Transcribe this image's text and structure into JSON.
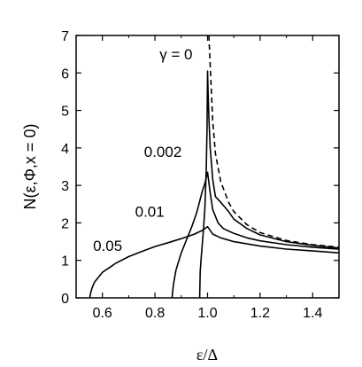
{
  "chart_data": {
    "type": "line",
    "title": "",
    "xlabel": "ε/Δ",
    "ylabel": "N(ε,Φ,x = 0)",
    "xlim": [
      0.5,
      1.5
    ],
    "ylim": [
      0,
      7
    ],
    "xticks": [
      0.6,
      0.8,
      1.0,
      1.2,
      1.4
    ],
    "xtick_labels": [
      "0.6",
      "0.8",
      "1.0",
      "1.2",
      "1.4"
    ],
    "yticks": [
      0,
      1,
      2,
      3,
      4,
      5,
      6,
      7
    ],
    "ytick_labels": [
      "0",
      "1",
      "2",
      "3",
      "4",
      "5",
      "6",
      "7"
    ],
    "grid": false,
    "series": [
      {
        "name": "γ = 0",
        "style": "dashed",
        "x": [
          1.005,
          1.01,
          1.02,
          1.03,
          1.05,
          1.08,
          1.1,
          1.15,
          1.2,
          1.3,
          1.4,
          1.5
        ],
        "y": [
          7.0,
          6.2,
          4.7,
          3.85,
          3.1,
          2.55,
          2.3,
          1.95,
          1.74,
          1.53,
          1.42,
          1.35
        ]
      },
      {
        "name": "0.002",
        "style": "solid",
        "x": [
          0.97,
          0.972,
          0.975,
          0.98,
          0.985,
          0.99,
          0.995,
          0.998,
          1.0,
          1.002,
          1.005,
          1.01,
          1.02,
          1.03,
          1.05,
          1.08,
          1.1,
          1.15,
          1.2,
          1.3,
          1.4,
          1.5
        ],
        "y": [
          0.0,
          0.7,
          1.0,
          1.45,
          1.85,
          2.4,
          3.4,
          4.5,
          6.05,
          5.5,
          4.8,
          4.0,
          3.15,
          2.7,
          2.55,
          2.3,
          2.1,
          1.85,
          1.68,
          1.5,
          1.4,
          1.33
        ]
      },
      {
        "name": "0.01",
        "style": "solid",
        "x": [
          0.865,
          0.87,
          0.88,
          0.9,
          0.92,
          0.94,
          0.96,
          0.98,
          0.99,
          1.0,
          1.01,
          1.02,
          1.04,
          1.06,
          1.1,
          1.15,
          1.2,
          1.3,
          1.4,
          1.5
        ],
        "y": [
          0.0,
          0.35,
          0.75,
          1.2,
          1.55,
          1.9,
          2.3,
          2.85,
          3.05,
          3.35,
          2.8,
          2.35,
          2.0,
          1.85,
          1.72,
          1.6,
          1.52,
          1.42,
          1.35,
          1.3
        ]
      },
      {
        "name": "0.05",
        "style": "solid",
        "x": [
          0.552,
          0.555,
          0.56,
          0.57,
          0.6,
          0.65,
          0.7,
          0.75,
          0.8,
          0.85,
          0.9,
          0.95,
          0.98,
          1.0,
          1.02,
          1.05,
          1.1,
          1.2,
          1.3,
          1.4,
          1.5
        ],
        "y": [
          0.0,
          0.12,
          0.25,
          0.42,
          0.68,
          0.92,
          1.1,
          1.24,
          1.37,
          1.47,
          1.58,
          1.7,
          1.8,
          1.9,
          1.7,
          1.6,
          1.5,
          1.38,
          1.3,
          1.25,
          1.2
        ]
      }
    ],
    "annotations": [
      {
        "text": "γ = 0",
        "x": 0.88,
        "y": 6.5
      },
      {
        "text": "0.002",
        "x": 0.83,
        "y": 3.9
      },
      {
        "text": "0.01",
        "x": 0.78,
        "y": 2.3
      },
      {
        "text": "0.05",
        "x": 0.62,
        "y": 1.4
      }
    ]
  }
}
